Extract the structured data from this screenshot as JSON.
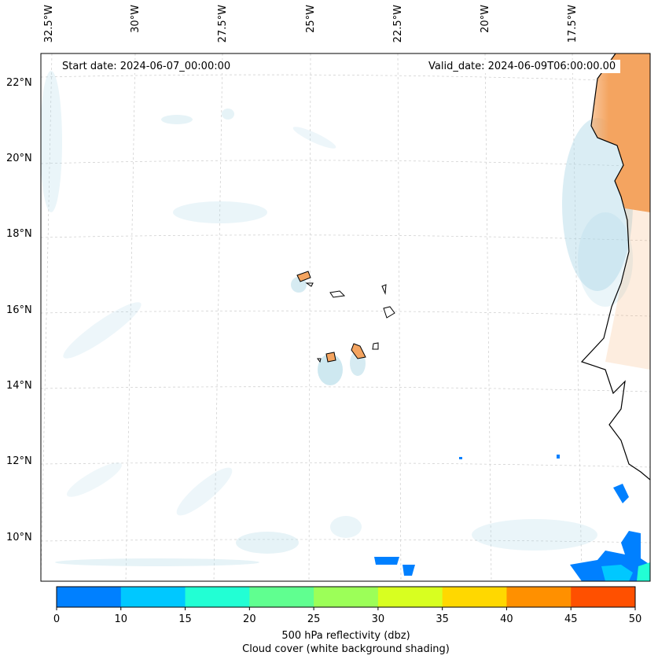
{
  "map": {
    "start_date": "Start date: 2024-06-07_00:00:00",
    "valid_date": "Valid_date: 2024-06-09T06:00:00.00",
    "lon_labels": [
      "32.5°W",
      "30°W",
      "27.5°W",
      "25°W",
      "22.5°W",
      "20°W",
      "17.5°W"
    ],
    "lat_labels": [
      "22°N",
      "20°N",
      "18°N",
      "16°N",
      "14°N",
      "12°N",
      "10°N"
    ],
    "land_color": "#f4a460",
    "cloud_color": "#add8e6"
  },
  "colorbar": {
    "ticks": [
      "0",
      "10",
      "15",
      "20",
      "25",
      "30",
      "35",
      "40",
      "45",
      "50"
    ],
    "colors": [
      "#0080ff",
      "#00c8ff",
      "#22ffd4",
      "#60ff90",
      "#9cff58",
      "#d8ff20",
      "#ffd800",
      "#ff9000",
      "#ff5000"
    ],
    "label_line1": "500 hPa reflectivity (dbz)",
    "label_line2": "Cloud cover (white background shading)"
  }
}
